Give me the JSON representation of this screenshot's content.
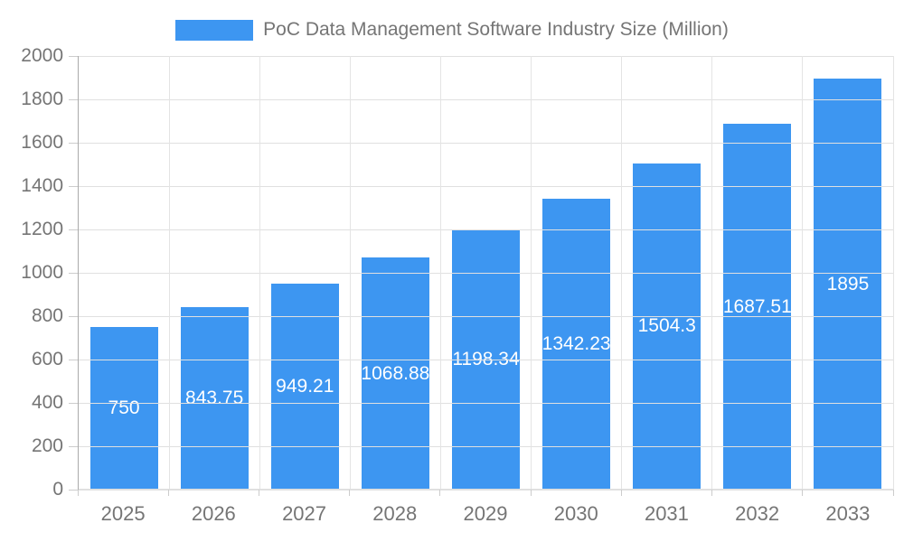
{
  "chart_data": {
    "type": "bar",
    "title": "PoC Data Management Software Industry Size (Million)",
    "categories": [
      "2025",
      "2026",
      "2027",
      "2028",
      "2029",
      "2030",
      "2031",
      "2032",
      "2033"
    ],
    "values": [
      750,
      843.75,
      949.21,
      1068.88,
      1198.34,
      1342.23,
      1504.3,
      1687.51,
      1895
    ],
    "value_labels": [
      "750",
      "843.75",
      "949.21",
      "1068.88",
      "1198.34",
      "1342.23",
      "1504.3",
      "1687.51",
      "1895"
    ],
    "xlabel": "",
    "ylabel": "",
    "ylim": [
      0,
      2000
    ],
    "y_ticks": [
      0,
      200,
      400,
      600,
      800,
      1000,
      1200,
      1400,
      1600,
      1800,
      2000
    ],
    "grid": "both",
    "legend_position": "top-center",
    "value_label_position": "center-inside"
  },
  "colors": {
    "bar": "#3D96F1",
    "axis_text": "#757575",
    "value_text": "#ffffff",
    "grid_line": "#e0e0e0",
    "axis_line": "#aaaaaa",
    "tick_mark": "#cccccc",
    "background": "#ffffff"
  }
}
